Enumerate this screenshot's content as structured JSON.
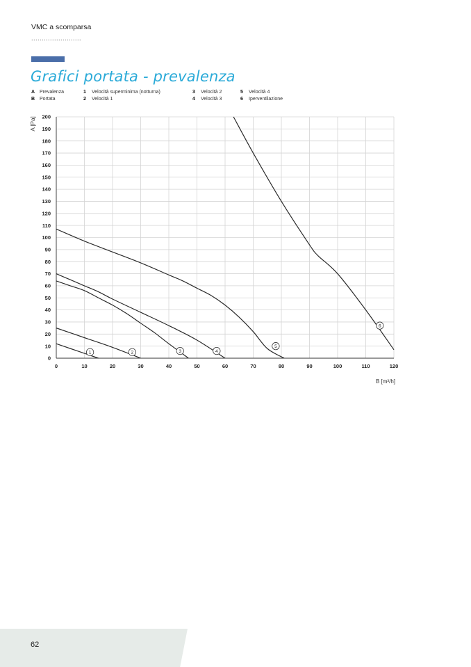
{
  "header": {
    "section_label": "VMC a scomparsa",
    "dots": "........................"
  },
  "title": "Grafici portata - prevalenza",
  "legend": {
    "axes": [
      {
        "key": "A",
        "label": "Prevalenza"
      },
      {
        "key": "B",
        "label": "Portata"
      }
    ],
    "speeds_col1": [
      {
        "key": "1",
        "label": "Velocità superminima (notturna)"
      },
      {
        "key": "2",
        "label": "Velocità 1"
      }
    ],
    "speeds_col2": [
      {
        "key": "3",
        "label": "Velocità 2"
      },
      {
        "key": "4",
        "label": "Velocità 3"
      }
    ],
    "speeds_col3": [
      {
        "key": "5",
        "label": "Velocità 4"
      },
      {
        "key": "6",
        "label": "Iperventilazione"
      }
    ]
  },
  "chart_data": {
    "type": "line",
    "title": "",
    "xlabel": "B [m³/h]",
    "ylabel": "A [Pa]",
    "xlim": [
      0,
      120
    ],
    "ylim": [
      0,
      200
    ],
    "x_ticks": [
      0,
      10,
      20,
      30,
      40,
      50,
      60,
      70,
      80,
      90,
      100,
      110,
      120
    ],
    "y_ticks": [
      0,
      10,
      20,
      30,
      40,
      50,
      60,
      70,
      80,
      90,
      100,
      110,
      120,
      130,
      140,
      150,
      160,
      170,
      180,
      190,
      200
    ],
    "grid": true,
    "line_color": "#2b2b2b",
    "series": [
      {
        "name": "1",
        "points": [
          [
            0,
            12
          ],
          [
            5,
            8
          ],
          [
            10,
            4
          ],
          [
            15,
            0
          ]
        ],
        "label_at": [
          12,
          5
        ]
      },
      {
        "name": "2",
        "points": [
          [
            0,
            25
          ],
          [
            10,
            17
          ],
          [
            20,
            9
          ],
          [
            30,
            0
          ]
        ],
        "label_at": [
          27,
          5
        ]
      },
      {
        "name": "3",
        "points": [
          [
            0,
            64
          ],
          [
            5,
            60
          ],
          [
            10,
            56
          ],
          [
            15,
            50
          ],
          [
            20,
            44
          ],
          [
            25,
            37
          ],
          [
            30,
            29
          ],
          [
            35,
            21
          ],
          [
            40,
            12
          ],
          [
            47,
            0
          ]
        ],
        "label_at": [
          44,
          6
        ]
      },
      {
        "name": "4",
        "points": [
          [
            0,
            70
          ],
          [
            5,
            65
          ],
          [
            10,
            60
          ],
          [
            15,
            55
          ],
          [
            20,
            49
          ],
          [
            30,
            38
          ],
          [
            40,
            27
          ],
          [
            50,
            15
          ],
          [
            60,
            0
          ]
        ],
        "label_at": [
          57,
          6
        ]
      },
      {
        "name": "5",
        "points": [
          [
            0,
            107
          ],
          [
            10,
            97
          ],
          [
            20,
            88
          ],
          [
            30,
            79
          ],
          [
            40,
            69
          ],
          [
            45,
            64
          ],
          [
            50,
            58
          ],
          [
            55,
            52
          ],
          [
            60,
            44
          ],
          [
            65,
            34
          ],
          [
            70,
            22
          ],
          [
            75,
            8
          ],
          [
            81,
            0
          ]
        ],
        "label_at": [
          78,
          10
        ]
      },
      {
        "name": "6",
        "points": [
          [
            63,
            200
          ],
          [
            70,
            170
          ],
          [
            80,
            130
          ],
          [
            90,
            94
          ],
          [
            93,
            85
          ],
          [
            100,
            70
          ],
          [
            110,
            40
          ],
          [
            120,
            7
          ]
        ],
        "label_at": [
          115,
          27
        ]
      }
    ]
  },
  "page_number": "62"
}
